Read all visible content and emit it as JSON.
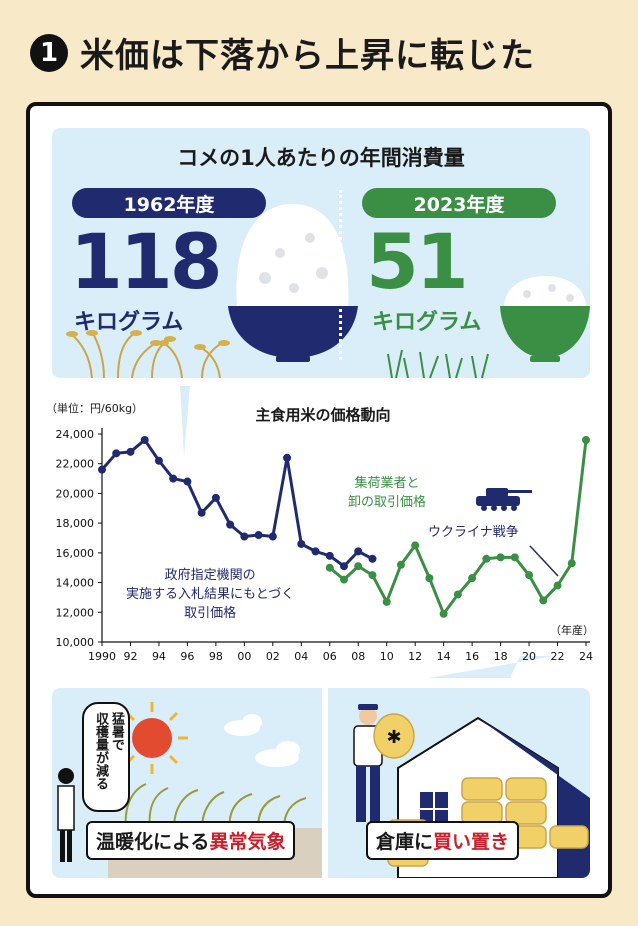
{
  "headline": {
    "number": "1",
    "text": "米価は下落から上昇に転じた"
  },
  "consumption": {
    "title": "コメの1人あたりの年間消費量",
    "left": {
      "year": "1962年度",
      "value": "118",
      "unit": "キログラム"
    },
    "right": {
      "year": "2023年度",
      "value": "51",
      "unit": "キログラム"
    }
  },
  "colors": {
    "navy": "#202a6e",
    "green": "#3a8f45",
    "red": "#c8202d",
    "sky": "#d9eef8",
    "cream": "#f8e9c9"
  },
  "chart_data": {
    "type": "line",
    "title": "主食用米の価格動向",
    "ylabel": "（単位：円/60kg）",
    "xlabel": "（年産）",
    "ylim": [
      10000,
      24000
    ],
    "xlim": [
      1990,
      2024
    ],
    "yticks": [
      "10,000",
      "12,000",
      "14,000",
      "16,000",
      "18,000",
      "20,000",
      "22,000",
      "24,000"
    ],
    "xticks": [
      "1990",
      "92",
      "94",
      "96",
      "98",
      "00",
      "02",
      "04",
      "06",
      "08",
      "10",
      "12",
      "14",
      "16",
      "18",
      "20",
      "22",
      "24"
    ],
    "grid": false,
    "series": [
      {
        "name": "政府指定機関の実施する入札結果にもとづく取引価格",
        "color": "#202a6e",
        "x": [
          1990,
          1991,
          1992,
          1993,
          1994,
          1995,
          1996,
          1997,
          1998,
          1999,
          2000,
          2001,
          2002,
          2003,
          2004,
          2005,
          2006,
          2007,
          2008,
          2009
        ],
        "values": [
          21600,
          22700,
          22800,
          23600,
          22200,
          21000,
          20800,
          18700,
          19700,
          17900,
          17100,
          17200,
          17100,
          22400,
          16600,
          16100,
          15800,
          15100,
          16100,
          15600
        ]
      },
      {
        "name": "集荷業者と卸の取引価格",
        "color": "#3a8f45",
        "x": [
          2006,
          2007,
          2008,
          2009,
          2010,
          2011,
          2012,
          2013,
          2014,
          2015,
          2016,
          2017,
          2018,
          2019,
          2020,
          2021,
          2022,
          2023,
          2024
        ],
        "values": [
          15000,
          14200,
          15100,
          14500,
          12700,
          15200,
          16500,
          14300,
          11900,
          13200,
          14300,
          15600,
          15700,
          15700,
          14500,
          12800,
          13800,
          15300,
          23600
        ]
      }
    ],
    "annotations": {
      "navy": [
        "政府指定機関の",
        "実施する入札結果にもとづく",
        "取引価格"
      ],
      "green": [
        "集荷業者と",
        "卸の取引価格"
      ],
      "ukraine": "ウクライナ戦争"
    }
  },
  "bottom": {
    "bubble": [
      "猛暑で",
      "収穫量が減る"
    ],
    "left_label_plain": "温暖化による",
    "left_label_red": "異常気象",
    "right_label_a": "倉庫に",
    "right_label_b": "買い置き"
  }
}
